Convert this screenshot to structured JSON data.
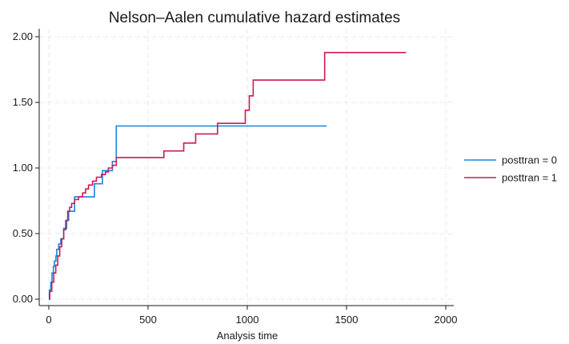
{
  "chart_data": {
    "type": "line",
    "step": true,
    "title": "Nelson–Aalen cumulative hazard estimates",
    "xlabel": "Analysis time",
    "ylabel": "",
    "xlim": [
      0,
      2000
    ],
    "ylim": [
      0,
      2.0
    ],
    "xticks": [
      0,
      500,
      1000,
      1500,
      2000
    ],
    "yticks": [
      0,
      0.5,
      1.0,
      1.5,
      2.0
    ],
    "xtick_labels": [
      "0",
      "500",
      "1000",
      "1500",
      "2000"
    ],
    "ytick_labels": [
      "0.00",
      "0.50",
      "1.00",
      "1.50",
      "2.00"
    ],
    "grid": true,
    "legend_position": "right",
    "series": [
      {
        "name": "posttran = 0",
        "color": "#1a85d8",
        "x": [
          0,
          3,
          10,
          16,
          23,
          28,
          36,
          40,
          50,
          60,
          75,
          90,
          100,
          130,
          180,
          230,
          270,
          290,
          320,
          340,
          1400
        ],
        "y": [
          0.0,
          0.07,
          0.13,
          0.2,
          0.25,
          0.29,
          0.33,
          0.38,
          0.42,
          0.46,
          0.54,
          0.6,
          0.67,
          0.78,
          0.78,
          0.88,
          0.98,
          0.98,
          1.05,
          1.32,
          1.32
        ]
      },
      {
        "name": "posttran = 1",
        "color": "#cc1a55",
        "x": [
          0,
          5,
          15,
          25,
          35,
          45,
          55,
          65,
          75,
          85,
          95,
          105,
          115,
          130,
          150,
          170,
          185,
          200,
          220,
          240,
          265,
          285,
          300,
          320,
          340,
          580,
          680,
          740,
          850,
          990,
          1010,
          1030,
          1390,
          1800
        ],
        "y": [
          0.0,
          0.06,
          0.13,
          0.2,
          0.26,
          0.33,
          0.4,
          0.46,
          0.53,
          0.6,
          0.67,
          0.7,
          0.73,
          0.76,
          0.78,
          0.81,
          0.84,
          0.87,
          0.9,
          0.93,
          0.95,
          0.97,
          1.0,
          1.02,
          1.08,
          1.13,
          1.19,
          1.26,
          1.34,
          1.44,
          1.55,
          1.67,
          1.88,
          1.88
        ]
      }
    ]
  }
}
